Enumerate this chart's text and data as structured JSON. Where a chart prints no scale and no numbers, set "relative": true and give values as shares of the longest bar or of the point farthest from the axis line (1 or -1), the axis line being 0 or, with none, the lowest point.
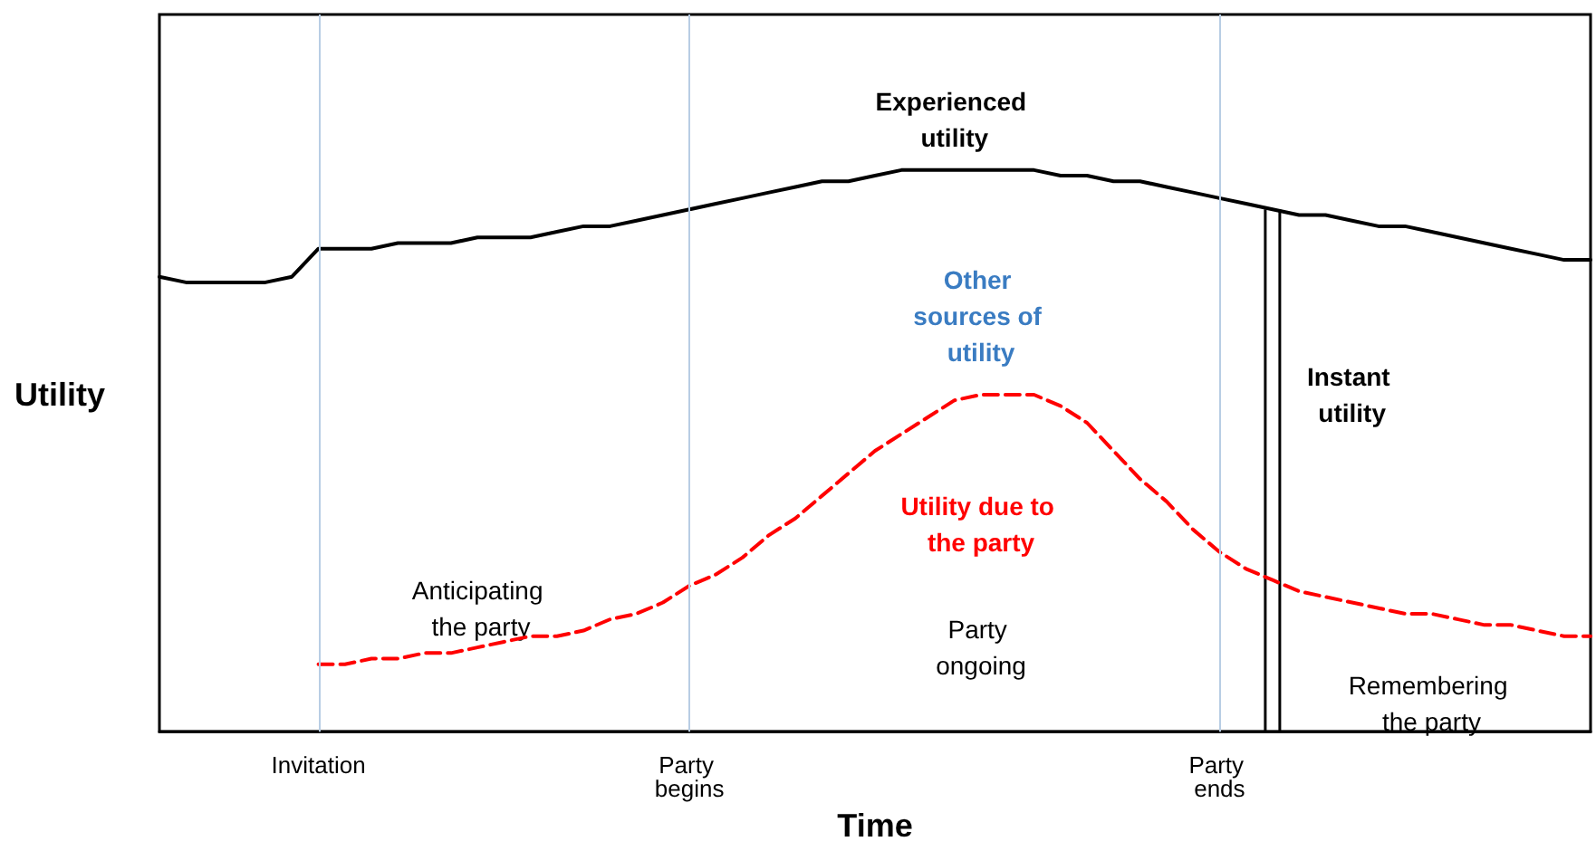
{
  "chart_data": {
    "type": "line",
    "relative": true,
    "xlabel": "Time",
    "ylabel": "Utility",
    "categories": [
      null,
      null,
      null,
      null,
      null,
      null,
      "Invitation",
      null,
      null,
      null,
      null,
      null,
      null,
      null,
      null,
      null,
      null,
      null,
      null,
      null,
      "Party begins",
      null,
      null,
      null,
      null,
      null,
      null,
      null,
      null,
      null,
      null,
      null,
      null,
      null,
      null,
      null,
      null,
      null,
      null,
      null,
      "Party ends",
      null,
      null,
      null,
      null,
      null,
      null,
      null,
      null,
      null,
      null,
      null,
      null,
      null,
      null
    ],
    "series": [
      {
        "name": "Experienced utility",
        "color": "#000000",
        "line_style": "solid",
        "values": [
          0.81,
          0.8,
          0.8,
          0.8,
          0.8,
          0.81,
          0.86,
          0.86,
          0.86,
          0.87,
          0.87,
          0.87,
          0.88,
          0.88,
          0.88,
          0.89,
          0.9,
          0.9,
          0.91,
          0.92,
          0.93,
          0.94,
          0.95,
          0.96,
          0.97,
          0.98,
          0.98,
          0.99,
          1,
          1,
          1,
          1,
          1,
          1,
          0.99,
          0.99,
          0.98,
          0.98,
          0.97,
          0.96,
          0.95,
          0.94,
          0.93,
          0.92,
          0.92,
          0.91,
          0.9,
          0.9,
          0.89,
          0.88,
          0.87,
          0.86,
          0.85,
          0.84,
          0.84
        ]
      },
      {
        "name": "Utility due to the party",
        "color": "#ff0000",
        "line_style": "dashed",
        "values": [
          null,
          null,
          null,
          null,
          null,
          null,
          0.12,
          0.12,
          0.13,
          0.13,
          0.14,
          0.14,
          0.15,
          0.16,
          0.17,
          0.17,
          0.18,
          0.2,
          0.21,
          0.23,
          0.26,
          0.28,
          0.31,
          0.35,
          0.38,
          0.42,
          0.46,
          0.5,
          0.53,
          0.56,
          0.59,
          0.6,
          0.6,
          0.6,
          0.58,
          0.55,
          0.5,
          0.45,
          0.41,
          0.36,
          0.32,
          0.29,
          0.27,
          0.25,
          0.24,
          0.23,
          0.22,
          0.21,
          0.21,
          0.2,
          0.19,
          0.19,
          0.18,
          0.17,
          0.17
        ]
      }
    ],
    "ref_lines": [
      {
        "axis": "x",
        "value": "Invitation",
        "color": "#b8cde4"
      },
      {
        "axis": "x",
        "value": "Party begins",
        "color": "#b8cde4"
      },
      {
        "axis": "x",
        "value": "Party ends",
        "color": "#b8cde4"
      }
    ],
    "annotations": [
      "Other sources of utility",
      "Anticipating the party",
      "Party ongoing",
      "Remembering the party",
      "Instant utility"
    ],
    "marker": "none",
    "grid": false,
    "legend": false
  }
}
